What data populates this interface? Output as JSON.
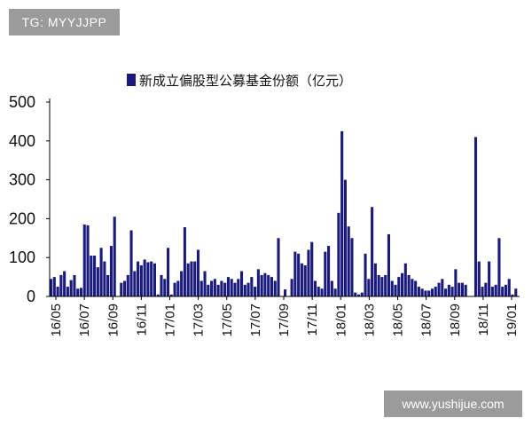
{
  "watermarks": {
    "top_left": "TG: MYYJJPP",
    "bottom_right": "www.yushijue.com"
  },
  "colors": {
    "bar": "#1a1a7c",
    "axis": "#000000",
    "watermark_bg": "#9b9b9b"
  },
  "chart_data": {
    "type": "bar",
    "title": "",
    "xlabel": "",
    "ylabel": "",
    "legend": {
      "label": "新成立偏股型公募基金份额（亿元）",
      "position": "top"
    },
    "ylim": [
      0,
      500
    ],
    "yticks": [
      0,
      100,
      200,
      300,
      400,
      500
    ],
    "grid": false,
    "x_tick_labels": [
      "16/05",
      "16/07",
      "16/09",
      "16/11",
      "17/01",
      "17/03",
      "17/05",
      "17/07",
      "17/09",
      "17/11",
      "18/01",
      "18/03",
      "18/05",
      "18/07",
      "18/09",
      "18/11",
      "19/01"
    ],
    "series": [
      {
        "name": "新成立偏股型公募基金份额（亿元）",
        "values": [
          45,
          50,
          25,
          55,
          65,
          25,
          42,
          55,
          20,
          22,
          185,
          183,
          105,
          105,
          75,
          125,
          90,
          55,
          130,
          205,
          0,
          35,
          40,
          55,
          170,
          65,
          90,
          80,
          95,
          88,
          90,
          85,
          5,
          55,
          45,
          125,
          5,
          35,
          40,
          65,
          178,
          85,
          90,
          90,
          120,
          40,
          65,
          30,
          40,
          45,
          30,
          40,
          35,
          50,
          45,
          35,
          45,
          65,
          30,
          35,
          50,
          25,
          70,
          55,
          60,
          55,
          50,
          40,
          150,
          0,
          18,
          0,
          45,
          115,
          110,
          85,
          80,
          120,
          140,
          40,
          25,
          20,
          115,
          130,
          40,
          20,
          215,
          425,
          300,
          180,
          150,
          10,
          5,
          10,
          110,
          45,
          230,
          85,
          55,
          50,
          55,
          160,
          40,
          30,
          50,
          60,
          85,
          55,
          45,
          40,
          25,
          20,
          15,
          15,
          20,
          25,
          35,
          45,
          20,
          30,
          25,
          70,
          35,
          35,
          30,
          0,
          0,
          410,
          90,
          25,
          35,
          90,
          25,
          30,
          150,
          25,
          30,
          45,
          5,
          20
        ]
      }
    ]
  }
}
